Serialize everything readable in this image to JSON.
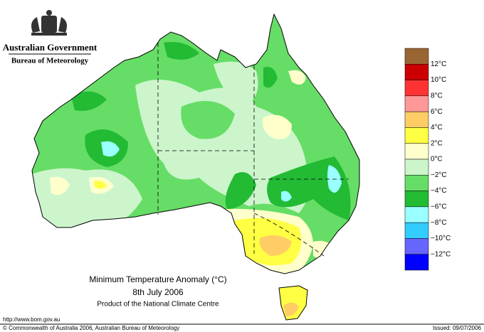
{
  "header": {
    "agency": "Australian Government",
    "bureau": "Bureau of Meteorology"
  },
  "map": {
    "title": "Minimum Temperature Anomaly (°C)",
    "date": "8th July 2006",
    "product": "Product of the National Climate Centre"
  },
  "legend": {
    "colors": [
      "#996633",
      "#cc0000",
      "#ff3333",
      "#ff9999",
      "#ffcc66",
      "#ffff44",
      "#ffffcc",
      "#ccf5cc",
      "#66dd66",
      "#22bb33",
      "#99ffff",
      "#33ccff",
      "#6666ff",
      "#0000ff"
    ],
    "labels": [
      "12°C",
      "10°C",
      "8°C",
      "6°C",
      "4°C",
      "2°C",
      "0°C",
      "−2°C",
      "−4°C",
      "−6°C",
      "−8°C",
      "−10°C",
      "−12°C"
    ]
  },
  "footer": {
    "url": "http://www.bom.gov.au",
    "copyright": "© Commonwealth of Australia 2006, Australian Bureau of Meteorology",
    "issued": "Issued: 09/07/2006"
  }
}
